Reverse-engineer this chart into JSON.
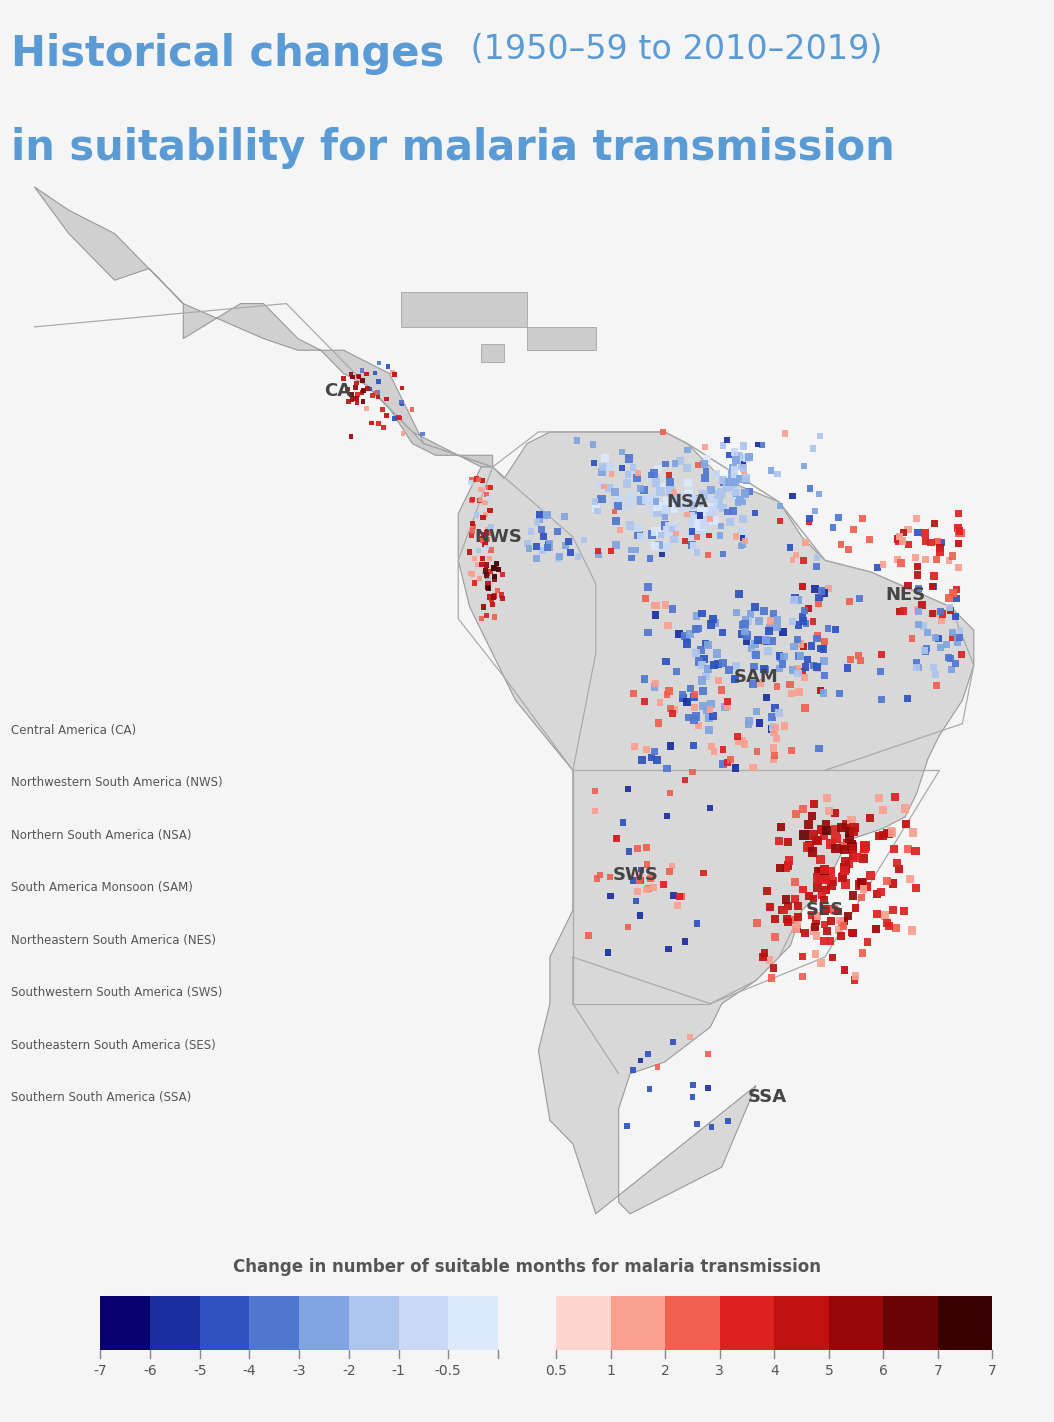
{
  "title_bold": "Historical changes",
  "title_light": " (1950–59 to 2010–2019)",
  "title_line2": "in suitability for malaria transmission",
  "title_color": "#5b9bd5",
  "background_color": "#f0f0f0",
  "map_border_color": "#aaaaaa",
  "map_land_color": "#e8e8e8",
  "map_ocean_color": "#dde5ed",
  "map_bg_texture_color": "#e0e4e8",
  "colorbar_label": "Change in number of suitable months for malaria transmission",
  "colorbar_label_color": "#555555",
  "legend_lines": [
    "Central America (CA)",
    "Northwestern South America (NWS)",
    "Northern South America (NSA)",
    "South America Monsoon (SAM)",
    "Northeastern South America (NES)",
    "Southwestern South America (SWS)",
    "Southeastern South America (SES)",
    "Southern South America (SSA)"
  ],
  "blue_colors": [
    "#08006e",
    "#1b2fa0",
    "#2e52c0",
    "#5077d0",
    "#7fa4df",
    "#adc4ec",
    "#c8d8f5",
    "#dce8fc"
  ],
  "red_colors": [
    "#fdd5cc",
    "#f9a090",
    "#ef6050",
    "#dd2020",
    "#c01010",
    "#960808",
    "#6a0404",
    "#380000"
  ],
  "region_label_color": "#444444",
  "border_color": "#aaaaaa",
  "region_labels": [
    [
      "CA",
      -90.5,
      14.5
    ],
    [
      "NWS",
      -76.5,
      2.0
    ],
    [
      "NSA",
      -60.0,
      5.0
    ],
    [
      "SAM",
      -54.0,
      -10.0
    ],
    [
      "NES",
      -41.0,
      -3.0
    ],
    [
      "SWS",
      -64.5,
      -27.0
    ],
    [
      "SES",
      -48.0,
      -30.0
    ],
    [
      "SSA",
      -53.0,
      -46.0
    ]
  ]
}
